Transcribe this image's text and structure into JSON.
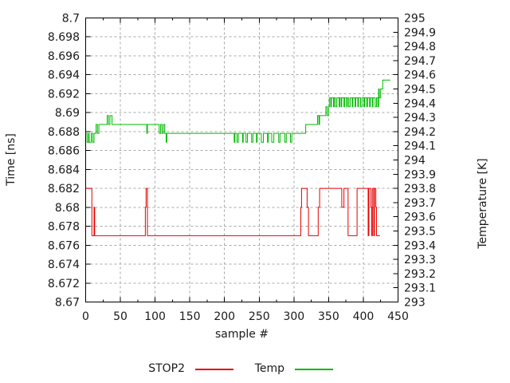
{
  "chart_data": {
    "type": "line",
    "title": "",
    "xlabel": "sample #",
    "ylabel": "Time [ns]",
    "y2label": "Temperature [K]",
    "xlim": [
      0,
      450
    ],
    "ylim": [
      8.67,
      8.7
    ],
    "y2lim": [
      293,
      295
    ],
    "grid": true,
    "legend_position": "bottom-center",
    "x_tick_labels": [
      "0",
      "50",
      "100",
      "150",
      "200",
      "250",
      "300",
      "350",
      "400",
      "450"
    ],
    "x_minor_ticks": [
      25,
      75,
      125,
      175,
      225,
      275,
      325,
      375,
      425
    ],
    "y_tick_labels": [
      "8.7",
      "8.698",
      "8.696",
      "8.694",
      "8.692",
      "8.69",
      "8.688",
      "8.686",
      "8.684",
      "8.682",
      "8.68",
      "8.678",
      "8.676",
      "8.674",
      "8.672",
      "8.67"
    ],
    "y2_tick_labels": [
      "295",
      "294.9",
      "294.8",
      "294.7",
      "294.6",
      "294.5",
      "294.4",
      "294.3",
      "294.2",
      "294.1",
      "294",
      "293.9",
      "293.8",
      "293.7",
      "293.6",
      "293.5",
      "293.4",
      "293.3",
      "293.2",
      "293.1",
      "293"
    ],
    "colors": {
      "stop2": "#e60000",
      "temp": "#00bb00",
      "grid": "#a8a8a8",
      "frame": "#000000",
      "text": "#1a1a1a",
      "background": "#ffffff"
    },
    "series": [
      {
        "name": "STOP2",
        "axis": "y1",
        "unit": "ns",
        "mode": "step",
        "points": [
          [
            0,
            8.682
          ],
          [
            9,
            8.677
          ],
          [
            12,
            8.68
          ],
          [
            13,
            8.677
          ],
          [
            86,
            8.68
          ],
          [
            87,
            8.682
          ],
          [
            89,
            8.677
          ],
          [
            310,
            8.68
          ],
          [
            311,
            8.682
          ],
          [
            319,
            8.68
          ],
          [
            321,
            8.677
          ],
          [
            335,
            8.68
          ],
          [
            337,
            8.682
          ],
          [
            369,
            8.68
          ],
          [
            372,
            8.682
          ],
          [
            378,
            8.677
          ],
          [
            391,
            8.682
          ],
          [
            407,
            8.677
          ],
          [
            408,
            8.682
          ],
          [
            411,
            8.68
          ],
          [
            412,
            8.677
          ],
          [
            413,
            8.682
          ],
          [
            415,
            8.677
          ],
          [
            416,
            8.682
          ],
          [
            418,
            8.68
          ],
          [
            419,
            8.677
          ],
          [
            424,
            8.677
          ]
        ]
      },
      {
        "name": "Temp",
        "axis": "y2",
        "unit": "K",
        "mode": "step",
        "points": [
          [
            0,
            294.1875
          ],
          [
            2,
            294.125
          ],
          [
            4,
            294.1875
          ],
          [
            5,
            294.125
          ],
          [
            8,
            294.1875
          ],
          [
            10,
            294.125
          ],
          [
            12,
            294.1875
          ],
          [
            15,
            294.25
          ],
          [
            17,
            294.1875
          ],
          [
            19,
            294.25
          ],
          [
            31,
            294.3125
          ],
          [
            33,
            294.25
          ],
          [
            35,
            294.3125
          ],
          [
            38,
            294.25
          ],
          [
            88,
            294.1875
          ],
          [
            89,
            294.25
          ],
          [
            106,
            294.1875
          ],
          [
            108,
            294.25
          ],
          [
            110,
            294.1875
          ],
          [
            112,
            294.25
          ],
          [
            114,
            294.1875
          ],
          [
            116,
            294.125
          ],
          [
            117,
            294.1875
          ],
          [
            214,
            294.125
          ],
          [
            215,
            294.1875
          ],
          [
            218,
            294.125
          ],
          [
            220,
            294.1875
          ],
          [
            226,
            294.125
          ],
          [
            227,
            294.1875
          ],
          [
            231,
            294.125
          ],
          [
            233,
            294.1875
          ],
          [
            239,
            294.125
          ],
          [
            241,
            294.1875
          ],
          [
            246,
            294.125
          ],
          [
            247,
            294.1875
          ],
          [
            253,
            294.125
          ],
          [
            256,
            294.1875
          ],
          [
            262,
            294.125
          ],
          [
            263,
            294.1875
          ],
          [
            268,
            294.125
          ],
          [
            271,
            294.1875
          ],
          [
            278,
            294.125
          ],
          [
            280,
            294.1875
          ],
          [
            287,
            294.125
          ],
          [
            289,
            294.1875
          ],
          [
            295,
            294.125
          ],
          [
            297,
            294.1875
          ],
          [
            317,
            294.25
          ],
          [
            334,
            294.3125
          ],
          [
            336,
            294.25
          ],
          [
            337,
            294.3125
          ],
          [
            346,
            294.375
          ],
          [
            348,
            294.3125
          ],
          [
            350,
            294.375
          ],
          [
            351,
            294.4375
          ],
          [
            353,
            294.375
          ],
          [
            354,
            294.4375
          ],
          [
            357,
            294.375
          ],
          [
            358,
            294.4375
          ],
          [
            360,
            294.375
          ],
          [
            362,
            294.4375
          ],
          [
            365,
            294.375
          ],
          [
            366,
            294.4375
          ],
          [
            368,
            294.375
          ],
          [
            369,
            294.4375
          ],
          [
            372,
            294.375
          ],
          [
            373,
            294.4375
          ],
          [
            376,
            294.375
          ],
          [
            377,
            294.4375
          ],
          [
            379,
            294.375
          ],
          [
            381,
            294.4375
          ],
          [
            384,
            294.375
          ],
          [
            385,
            294.4375
          ],
          [
            388,
            294.375
          ],
          [
            389,
            294.4375
          ],
          [
            392,
            294.375
          ],
          [
            393,
            294.4375
          ],
          [
            396,
            294.375
          ],
          [
            398,
            294.4375
          ],
          [
            401,
            294.375
          ],
          [
            402,
            294.4375
          ],
          [
            405,
            294.375
          ],
          [
            406,
            294.4375
          ],
          [
            409,
            294.375
          ],
          [
            410,
            294.4375
          ],
          [
            413,
            294.375
          ],
          [
            414,
            294.4375
          ],
          [
            417,
            294.375
          ],
          [
            419,
            294.4375
          ],
          [
            421,
            294.375
          ],
          [
            422,
            294.5
          ],
          [
            423,
            294.4375
          ],
          [
            425,
            294.5
          ],
          [
            428,
            294.5625
          ],
          [
            439,
            294.5625
          ]
        ]
      }
    ]
  }
}
